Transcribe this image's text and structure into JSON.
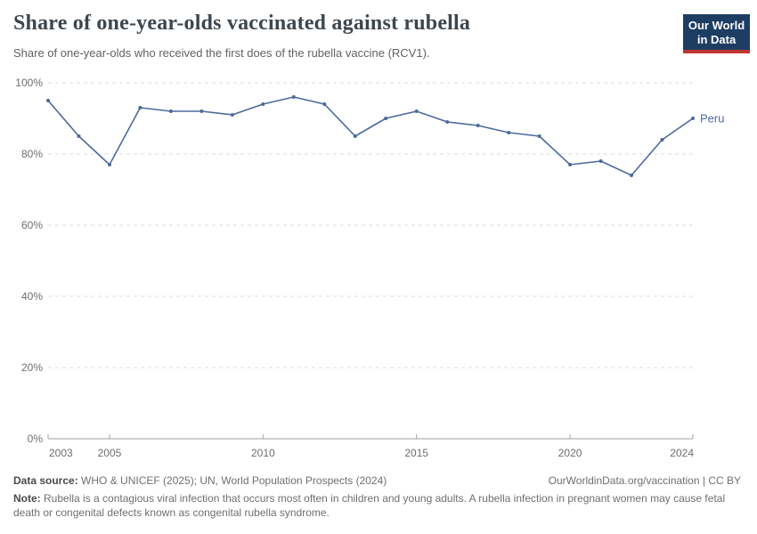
{
  "header": {
    "title": "Share of one-year-olds vaccinated against rubella",
    "subtitle": "Share of one-year-olds who received the first does of the rubella vaccine (RCV1).",
    "logo": {
      "line1": "Our World",
      "line2": "in Data"
    }
  },
  "chart_data": {
    "type": "line",
    "title": "Share of one-year-olds vaccinated against rubella",
    "xlabel": "",
    "ylabel": "",
    "x": [
      2003,
      2004,
      2005,
      2006,
      2007,
      2008,
      2009,
      2010,
      2011,
      2012,
      2013,
      2014,
      2015,
      2016,
      2017,
      2018,
      2019,
      2020,
      2021,
      2022,
      2023,
      2024
    ],
    "series": [
      {
        "name": "Peru",
        "color": "#4c6a9c",
        "values": [
          95,
          85,
          77,
          93,
          92,
          92,
          91,
          94,
          96,
          94,
          85,
          90,
          92,
          89,
          88,
          86,
          85,
          77,
          78,
          74,
          84,
          90
        ]
      }
    ],
    "xlim": [
      2003,
      2024
    ],
    "ylim": [
      0,
      100
    ],
    "xticks": [
      2003,
      2005,
      2010,
      2015,
      2020,
      2024
    ],
    "yticks": [
      0,
      20,
      40,
      60,
      80,
      100
    ],
    "ytick_suffix": "%",
    "grid": "horizontal-dashed",
    "legend": "line-end-label"
  },
  "colors": {
    "line": "#4c6a9c",
    "gridline": "#dcdcdc",
    "axis": "#a1a1a1",
    "tick_label": "#6e6e6e",
    "series_label": "#4c6a9c"
  },
  "footer": {
    "data_source_label": "Data source:",
    "data_source_text": " WHO & UNICEF (2025); UN, World Population Prospects (2024)",
    "link_text": "OurWorldinData.org/vaccination",
    "license_text": " | CC BY",
    "note_label": "Note:",
    "note_text": " Rubella is a contagious viral infection that occurs most often in children and young adults. A rubella infection in pregnant women may cause fetal death or congenital defects known as congenital rubella syndrome."
  }
}
